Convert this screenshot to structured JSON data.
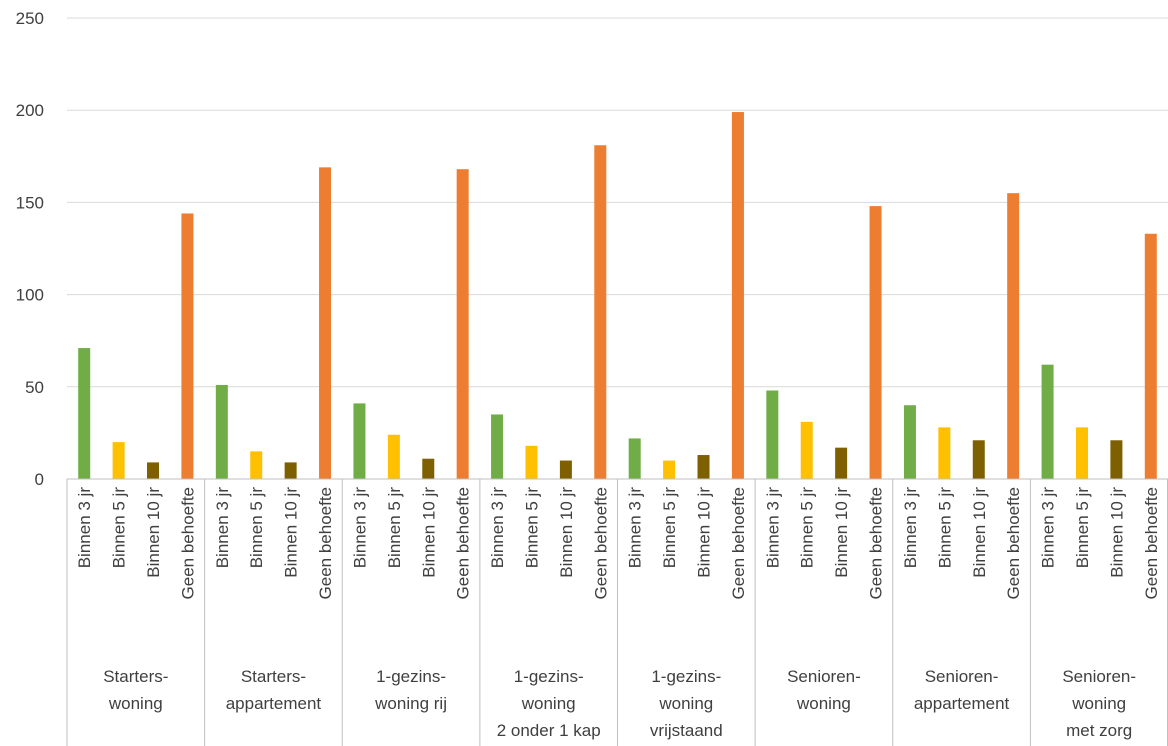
{
  "chart_data": {
    "type": "bar",
    "title": "",
    "xlabel": "",
    "ylabel": "",
    "ylim": [
      0,
      250
    ],
    "yticks": [
      0,
      50,
      100,
      150,
      200,
      250
    ],
    "grid": true,
    "legend": "none",
    "sub_categories": [
      "Binnen 3 jr",
      "Binnen 5 jr",
      "Binnen 10 jr",
      "Geen behoefte"
    ],
    "colors": [
      "#70ad47",
      "#ffc000",
      "#7f6000",
      "#ed7d31"
    ],
    "groups": [
      {
        "label_lines": [
          "Starters-",
          "woning"
        ],
        "values": [
          71,
          20,
          9,
          144
        ]
      },
      {
        "label_lines": [
          "Starters-",
          "appartement"
        ],
        "values": [
          51,
          15,
          9,
          169
        ]
      },
      {
        "label_lines": [
          "1-gezins-",
          "woning rij"
        ],
        "values": [
          41,
          24,
          11,
          168
        ]
      },
      {
        "label_lines": [
          "1-gezins-",
          "woning",
          "2 onder 1 kap"
        ],
        "values": [
          35,
          18,
          10,
          181
        ]
      },
      {
        "label_lines": [
          "1-gezins-",
          "woning",
          "vrijstaand"
        ],
        "values": [
          22,
          10,
          13,
          199
        ]
      },
      {
        "label_lines": [
          "Senioren-",
          "woning"
        ],
        "values": [
          48,
          31,
          17,
          148
        ]
      },
      {
        "label_lines": [
          "Senioren-",
          "appartement"
        ],
        "values": [
          40,
          28,
          21,
          155
        ]
      },
      {
        "label_lines": [
          "Senioren-",
          "woning",
          "met zorg"
        ],
        "values": [
          62,
          28,
          21,
          133
        ]
      }
    ]
  }
}
